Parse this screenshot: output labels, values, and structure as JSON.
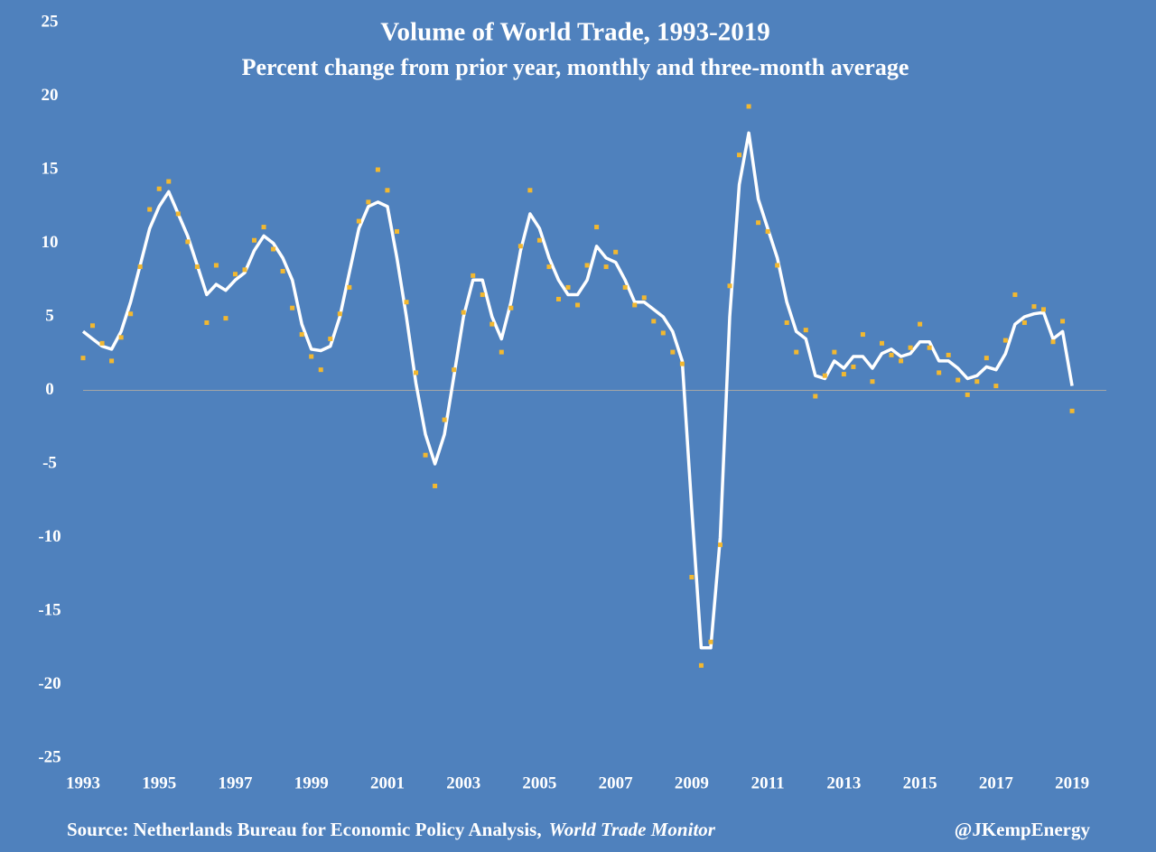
{
  "chart_data": {
    "type": "line",
    "title": "Volume of World Trade, 1993-2019",
    "subtitle": "Percent change from prior year, monthly and three-month average",
    "source": "Source:  Netherlands Bureau for Economic Policy Analysis,",
    "source_italic": "World Trade Monitor",
    "credit": "@JKempEnergy",
    "x": [
      1993,
      1993.25,
      1993.5,
      1993.75,
      1994,
      1994.25,
      1994.5,
      1994.75,
      1995,
      1995.25,
      1995.5,
      1995.75,
      1996,
      1996.25,
      1996.5,
      1996.75,
      1997,
      1997.25,
      1997.5,
      1997.75,
      1998,
      1998.25,
      1998.5,
      1998.75,
      1999,
      1999.25,
      1999.5,
      1999.75,
      2000,
      2000.25,
      2000.5,
      2000.75,
      2001,
      2001.25,
      2001.5,
      2001.75,
      2002,
      2002.25,
      2002.5,
      2002.75,
      2003,
      2003.25,
      2003.5,
      2003.75,
      2004,
      2004.25,
      2004.5,
      2004.75,
      2005,
      2005.25,
      2005.5,
      2005.75,
      2006,
      2006.25,
      2006.5,
      2006.75,
      2007,
      2007.25,
      2007.5,
      2007.75,
      2008,
      2008.25,
      2008.5,
      2008.75,
      2009,
      2009.25,
      2009.5,
      2009.75,
      2010,
      2010.25,
      2010.5,
      2010.75,
      2011,
      2011.25,
      2011.5,
      2011.75,
      2012,
      2012.25,
      2012.5,
      2012.75,
      2013,
      2013.25,
      2013.5,
      2013.75,
      2014,
      2014.25,
      2014.5,
      2014.75,
      2015,
      2015.25,
      2015.5,
      2015.75,
      2016,
      2016.25,
      2016.5,
      2016.75,
      2017,
      2017.25,
      2017.5,
      2017.75,
      2018,
      2018.25,
      2018.5,
      2018.75,
      2019
    ],
    "series": [
      {
        "name": "three-month average",
        "style": "line",
        "color": "#ffffff",
        "values": [
          4,
          3.5,
          3,
          2.8,
          4,
          6,
          8.5,
          11,
          12.5,
          13.5,
          12,
          10.5,
          8.5,
          6.5,
          7.2,
          6.8,
          7.5,
          8,
          9.5,
          10.5,
          10,
          9,
          7.5,
          4.5,
          2.8,
          2.7,
          3,
          5,
          8,
          11,
          12.5,
          12.8,
          12.5,
          9,
          5,
          0.5,
          -3,
          -5,
          -3,
          1,
          5,
          7.5,
          7.5,
          5,
          3.5,
          6,
          9.5,
          12,
          11,
          9,
          7.5,
          6.5,
          6.5,
          7.5,
          9.8,
          9,
          8.7,
          7.5,
          6,
          6,
          5.5,
          5,
          4,
          2,
          -8,
          -17.5,
          -17.5,
          -10,
          5,
          14,
          17.5,
          13,
          11,
          9,
          6,
          4,
          3.5,
          1,
          0.8,
          2,
          1.5,
          2.3,
          2.3,
          1.5,
          2.5,
          2.8,
          2.3,
          2.5,
          3.3,
          3.3,
          2,
          2,
          1.5,
          0.8,
          1,
          1.6,
          1.4,
          2.5,
          4.5,
          5,
          5.2,
          5.3,
          3.5,
          4,
          0.3
        ]
      },
      {
        "name": "monthly",
        "style": "scatter",
        "color": "#f2b830",
        "values": [
          2.2,
          4.4,
          3.2,
          2.0,
          3.6,
          5.2,
          8.4,
          12.3,
          13.7,
          14.2,
          12,
          10.1,
          8.4,
          4.6,
          8.5,
          4.9,
          7.9,
          8.2,
          10.2,
          11.1,
          9.6,
          8.1,
          5.6,
          3.8,
          2.3,
          1.4,
          3.5,
          5.2,
          7.0,
          11.5,
          12.8,
          15.0,
          13.6,
          10.8,
          6.0,
          1.2,
          -4.4,
          -6.5,
          -2.0,
          1.4,
          5.3,
          7.8,
          6.5,
          4.5,
          2.6,
          5.6,
          9.8,
          13.6,
          10.2,
          8.4,
          6.2,
          7.0,
          5.8,
          8.5,
          11.1,
          8.4,
          9.4,
          7.0,
          5.8,
          6.3,
          4.7,
          3.9,
          2.6,
          1.8,
          -12.7,
          -18.7,
          -17.1,
          -10.5,
          7.1,
          16,
          19.3,
          11.4,
          10.8,
          8.5,
          4.6,
          2.6,
          4.1,
          -0.4,
          1.0,
          2.6,
          1.1,
          1.6,
          3.8,
          0.6,
          3.2,
          2.4,
          2.0,
          2.9,
          4.5,
          2.9,
          1.2,
          2.4,
          0.7,
          -0.3,
          0.6,
          2.2,
          0.3,
          3.4,
          6.5,
          4.6,
          5.7,
          5.5,
          3.3,
          4.7,
          -1.4
        ]
      }
    ],
    "xlim": [
      1993,
      2019.9
    ],
    "xticks": [
      1993,
      1995,
      1997,
      1999,
      2001,
      2003,
      2005,
      2007,
      2009,
      2011,
      2013,
      2015,
      2017,
      2019
    ],
    "ylim": [
      -25,
      25
    ],
    "yticks": [
      -25,
      -20,
      -15,
      -10,
      -5,
      0,
      5,
      10,
      15,
      20,
      25
    ],
    "background": "#4f81bd",
    "grid": false
  }
}
